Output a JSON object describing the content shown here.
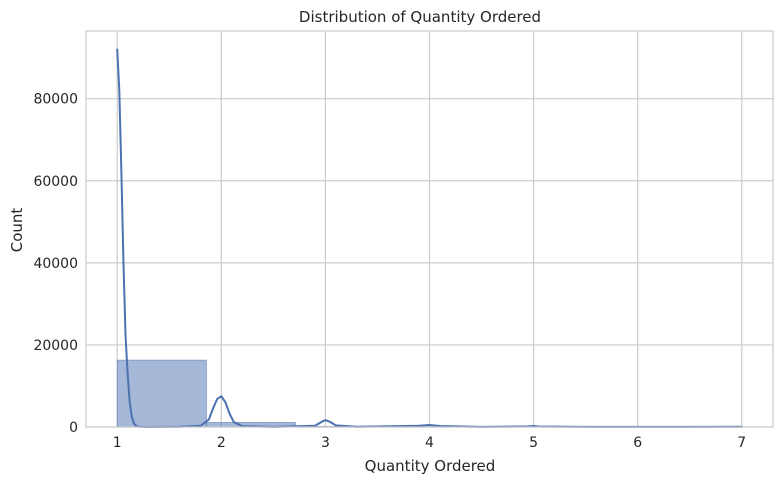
{
  "chart_data": {
    "type": "bar",
    "title": "Distribution of Quantity Ordered",
    "xlabel": "Quantity Ordered",
    "ylabel": "Count",
    "xlim": [
      0.7,
      7.3
    ],
    "ylim": [
      0,
      96500
    ],
    "x_ticks": [
      1,
      2,
      3,
      4,
      5,
      6,
      7
    ],
    "y_ticks": [
      0,
      20000,
      40000,
      60000,
      80000
    ],
    "grid": true,
    "colors": {
      "bar": "#4c72b0",
      "kde": "#4c72b0",
      "grid": "#cccccc",
      "text": "#262626"
    },
    "bins": [
      {
        "x0": 1.0,
        "x1": 1.857,
        "count": 16300
      },
      {
        "x0": 1.857,
        "x1": 2.714,
        "count": 1100
      },
      {
        "x0": 2.714,
        "x1": 3.571,
        "count": 150
      },
      {
        "x0": 3.571,
        "x1": 4.429,
        "count": 50
      },
      {
        "x0": 4.429,
        "x1": 5.286,
        "count": 15
      },
      {
        "x0": 5.286,
        "x1": 6.143,
        "count": 5
      },
      {
        "x0": 6.143,
        "x1": 7.0,
        "count": 3
      }
    ],
    "kde": {
      "x": [
        1.0,
        1.02,
        1.04,
        1.06,
        1.08,
        1.1,
        1.12,
        1.14,
        1.16,
        1.18,
        1.2,
        1.24,
        1.3,
        1.4,
        1.6,
        1.8,
        1.88,
        1.92,
        1.96,
        2.0,
        2.04,
        2.08,
        2.12,
        2.2,
        2.5,
        2.9,
        2.96,
        3.0,
        3.04,
        3.1,
        3.3,
        3.9,
        4.0,
        4.1,
        4.5,
        4.95,
        5.0,
        5.05,
        5.5,
        6.0,
        6.5,
        7.0
      ],
      "y": [
        92000,
        82000,
        62000,
        40000,
        22000,
        13000,
        6000,
        2500,
        900,
        300,
        100,
        30,
        10,
        20,
        50,
        300,
        1800,
        4500,
        6800,
        7500,
        6000,
        3200,
        1200,
        200,
        40,
        300,
        1200,
        1700,
        1300,
        400,
        50,
        300,
        500,
        250,
        30,
        150,
        250,
        120,
        20,
        30,
        30,
        50
      ]
    }
  }
}
